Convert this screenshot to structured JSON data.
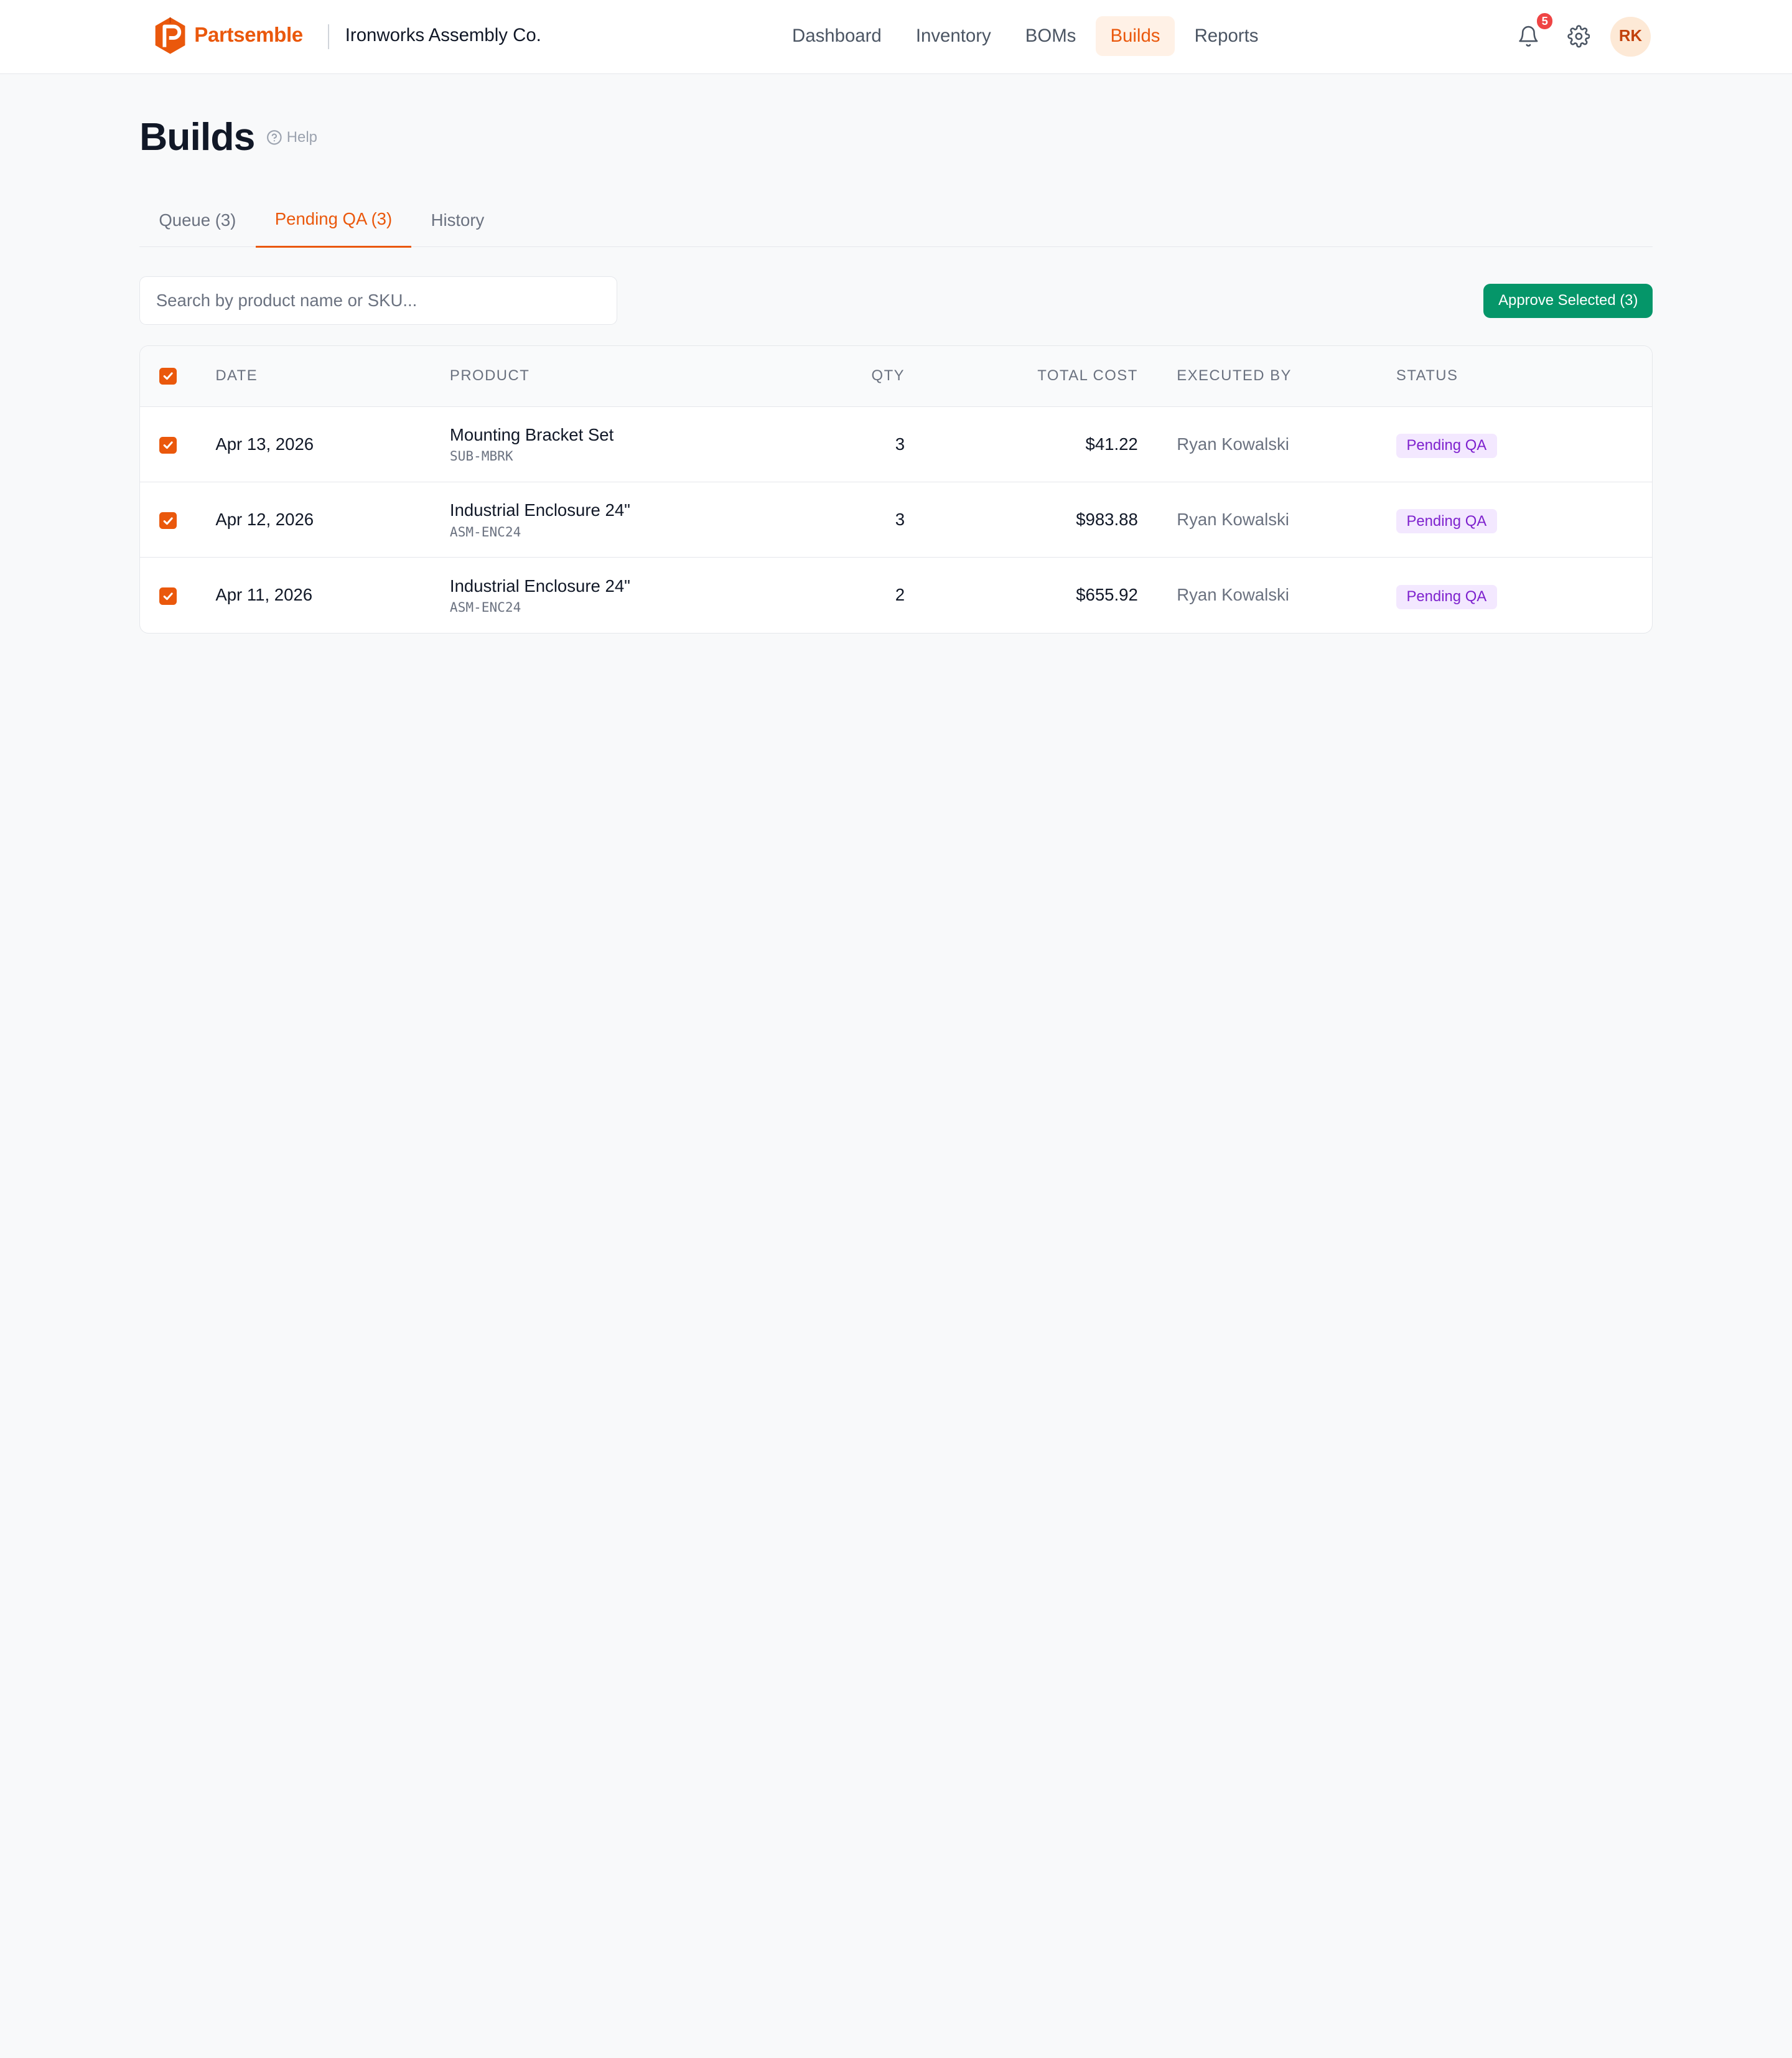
{
  "brand": {
    "name": "Partsemble",
    "org": "Ironworks Assembly Co.",
    "accent": "#ea580c"
  },
  "nav": {
    "items": [
      {
        "label": "Dashboard",
        "active": false
      },
      {
        "label": "Inventory",
        "active": false
      },
      {
        "label": "BOMs",
        "active": false
      },
      {
        "label": "Builds",
        "active": true
      },
      {
        "label": "Reports",
        "active": false
      }
    ]
  },
  "header_actions": {
    "notifications_count": "5",
    "notification_icon": "bell-icon",
    "settings_icon": "gear-icon",
    "avatar_initials": "RK"
  },
  "page": {
    "title": "Builds",
    "help_label": "Help",
    "tabs": [
      {
        "label": "Queue (3)",
        "active": false
      },
      {
        "label": "Pending QA (3)",
        "active": true
      },
      {
        "label": "History",
        "active": false
      }
    ]
  },
  "toolbar": {
    "search_placeholder": "Search by product name or SKU...",
    "search_value": "",
    "approve_label": "Approve Selected (3)",
    "approve_color": "#059669"
  },
  "table": {
    "header_checked": true,
    "columns": {
      "date": "Date",
      "product": "Product",
      "qty": "Qty",
      "cost": "Total Cost",
      "executed_by": "Executed By",
      "status": "Status"
    },
    "rows": [
      {
        "checked": true,
        "date": "Apr 13, 2026",
        "product": "Mounting Bracket Set",
        "sku": "SUB-MBRK",
        "qty": "3",
        "cost": "$41.22",
        "executed_by": "Ryan Kowalski",
        "status": "Pending QA"
      },
      {
        "checked": true,
        "date": "Apr 12, 2026",
        "product": "Industrial Enclosure 24\"",
        "sku": "ASM-ENC24",
        "qty": "3",
        "cost": "$983.88",
        "executed_by": "Ryan Kowalski",
        "status": "Pending QA"
      },
      {
        "checked": true,
        "date": "Apr 11, 2026",
        "product": "Industrial Enclosure 24\"",
        "sku": "ASM-ENC24",
        "qty": "2",
        "cost": "$655.92",
        "executed_by": "Ryan Kowalski",
        "status": "Pending QA"
      }
    ]
  }
}
